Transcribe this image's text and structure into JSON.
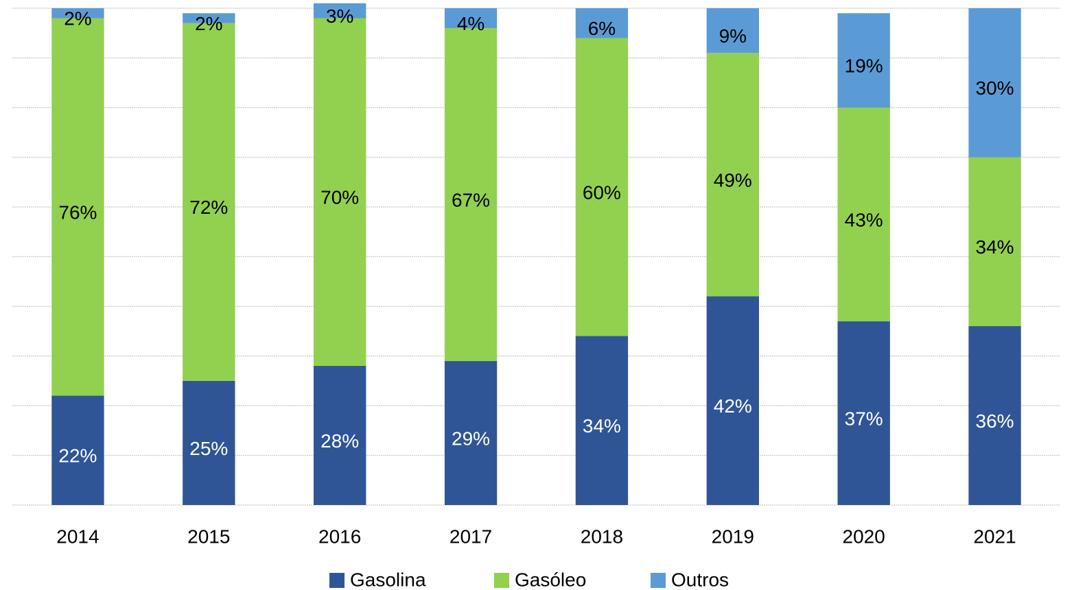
{
  "chart_data": {
    "type": "bar",
    "stacked": true,
    "categories": [
      "2014",
      "2015",
      "2016",
      "2017",
      "2018",
      "2019",
      "2020",
      "2021"
    ],
    "series": [
      {
        "name": "Gasolina",
        "color": "#2f5597",
        "label_color": "#ffffff",
        "values": [
          22,
          25,
          28,
          29,
          34,
          42,
          37,
          36
        ],
        "value_labels": [
          "22%",
          "25%",
          "28%",
          "29%",
          "34%",
          "42%",
          "37%",
          "36%"
        ]
      },
      {
        "name": "Gasóleo",
        "color": "#92d050",
        "label_color": "#000000",
        "values": [
          76,
          72,
          70,
          67,
          60,
          49,
          43,
          34
        ],
        "value_labels": [
          "76%",
          "72%",
          "70%",
          "67%",
          "60%",
          "49%",
          "43%",
          "34%"
        ]
      },
      {
        "name": "Outros",
        "color": "#5b9bd5",
        "label_color": "#000000",
        "values": [
          2,
          2,
          3,
          4,
          6,
          9,
          19,
          30
        ],
        "value_labels": [
          "2%",
          "2%",
          "3%",
          "4%",
          "6%",
          "9%",
          "19%",
          "30%"
        ]
      }
    ],
    "ylim": [
      0,
      100
    ],
    "yticks": [
      0,
      10,
      20,
      30,
      40,
      50,
      60,
      70,
      80,
      90,
      100
    ],
    "grid": true,
    "legend": "bottom"
  }
}
